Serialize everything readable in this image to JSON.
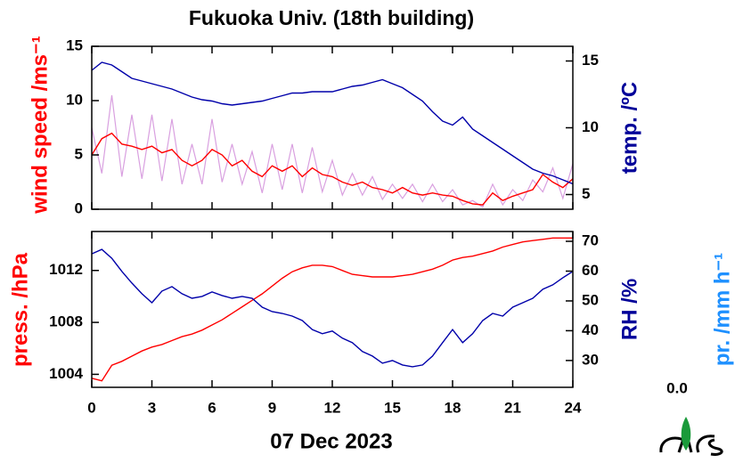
{
  "chart_data": [
    {
      "type": "line",
      "title": "Fukuoka Univ. (18th building)",
      "ylabel": "wind speed /ms⁻¹",
      "ylabel_color": "#ff0000",
      "y2label": "temp. /ºC",
      "y2label_color": "#000099",
      "xlim": [
        0,
        24
      ],
      "xticks": [
        0,
        3,
        6,
        9,
        12,
        15,
        18,
        21,
        24
      ],
      "ylim": [
        0,
        15
      ],
      "yticks": [
        0,
        5,
        10,
        15
      ],
      "y2lim": [
        3.9,
        16.1
      ],
      "y2ticks": [
        5,
        10,
        15
      ],
      "x": [
        0,
        0.5,
        1,
        1.5,
        2,
        2.5,
        3,
        3.5,
        4,
        4.5,
        5,
        5.5,
        6,
        6.5,
        7,
        7.5,
        8,
        8.5,
        9,
        9.5,
        10,
        10.5,
        11,
        11.5,
        12,
        12.5,
        13,
        13.5,
        14,
        14.5,
        15,
        15.5,
        16,
        16.5,
        17,
        17.5,
        18,
        18.5,
        19,
        19.5,
        20,
        20.5,
        21,
        21.5,
        22,
        22.5,
        23,
        23.5,
        24
      ],
      "series": [
        {
          "color": "#d9a0e0",
          "axis": "y",
          "values": [
            7.5,
            3.3,
            10.5,
            3,
            8.7,
            2.8,
            8.7,
            2.6,
            8.3,
            2.3,
            6,
            2.3,
            8.3,
            2.5,
            6,
            2.3,
            5.3,
            1.5,
            6,
            1.8,
            6,
            1.5,
            5.7,
            1.6,
            4.5,
            1.3,
            3.3,
            1.3,
            3,
            0.9,
            2.3,
            1,
            2.3,
            0.7,
            2.3,
            0.7,
            1.8,
            0.4,
            0.8,
            0.2,
            2.3,
            0.4,
            1.8,
            0.8,
            2.7,
            1.6,
            3.8,
            1,
            4.2
          ]
        },
        {
          "color": "#ff0000",
          "axis": "y",
          "values": [
            5,
            6.5,
            7,
            6,
            5.8,
            5.5,
            5.8,
            5.2,
            5.5,
            4.5,
            4,
            4.5,
            5.5,
            5,
            4,
            4.5,
            3.5,
            3,
            4,
            3.5,
            4,
            3,
            3.8,
            3.2,
            3,
            2.5,
            2.2,
            2.5,
            2,
            1.8,
            1.5,
            2,
            1.5,
            1.3,
            1.5,
            1.3,
            1.2,
            0.8,
            0.5,
            0.4,
            1.5,
            0.8,
            1.2,
            1.5,
            1.8,
            3.2,
            2.5,
            2,
            2.8
          ]
        },
        {
          "color": "#0000aa",
          "axis": "y2",
          "values": [
            14.3,
            14.9,
            14.7,
            14.2,
            13.7,
            13.5,
            13.3,
            13.1,
            12.9,
            12.6,
            12.3,
            12.1,
            12.0,
            11.8,
            11.7,
            11.8,
            11.9,
            12.0,
            12.2,
            12.4,
            12.6,
            12.6,
            12.7,
            12.7,
            12.7,
            12.9,
            13.1,
            13.2,
            13.4,
            13.6,
            13.3,
            13.0,
            12.5,
            12.0,
            11.2,
            10.5,
            10.2,
            10.8,
            9.9,
            9.4,
            8.9,
            8.4,
            7.9,
            7.4,
            6.9,
            6.6,
            6.4,
            6.1,
            5.8
          ]
        }
      ]
    },
    {
      "type": "line",
      "xlabel": "07 Dec 2023",
      "ylabel": "press. /hPa",
      "ylabel_color": "#ff0000",
      "y2label": "RH /%",
      "y2label_color": "#000099",
      "y3label": "pr. /mm h⁻¹",
      "y3label_color": "#1e90ff",
      "y3ticks": [
        {
          "value": 0,
          "label": "0.0"
        }
      ],
      "xlim": [
        0,
        24
      ],
      "xticks": [
        0,
        3,
        6,
        9,
        12,
        15,
        18,
        21,
        24
      ],
      "ylim": [
        1003.0,
        1015.0
      ],
      "yticks": [
        1004,
        1008,
        1012
      ],
      "y2lim": [
        21,
        73.3
      ],
      "y2ticks": [
        30,
        40,
        50,
        60,
        70
      ],
      "x": [
        0,
        0.5,
        1,
        1.5,
        2,
        2.5,
        3,
        3.5,
        4,
        4.5,
        5,
        5.5,
        6,
        6.5,
        7,
        7.5,
        8,
        8.5,
        9,
        9.5,
        10,
        10.5,
        11,
        11.5,
        12,
        12.5,
        13,
        13.5,
        14,
        14.5,
        15,
        15.5,
        16,
        16.5,
        17,
        17.5,
        18,
        18.5,
        19,
        19.5,
        20,
        20.5,
        21,
        21.5,
        22,
        22.5,
        23,
        23.5,
        24
      ],
      "series": [
        {
          "color": "#ff0000",
          "axis": "y",
          "values": [
            1003.7,
            1003.5,
            1004.7,
            1005.0,
            1005.4,
            1005.8,
            1006.1,
            1006.3,
            1006.6,
            1006.9,
            1007.1,
            1007.4,
            1007.8,
            1008.2,
            1008.7,
            1009.2,
            1009.7,
            1010.2,
            1010.8,
            1011.4,
            1011.9,
            1012.2,
            1012.4,
            1012.4,
            1012.3,
            1012.0,
            1011.7,
            1011.6,
            1011.5,
            1011.5,
            1011.5,
            1011.6,
            1011.7,
            1011.9,
            1012.1,
            1012.4,
            1012.8,
            1013.0,
            1013.1,
            1013.3,
            1013.5,
            1013.8,
            1014.0,
            1014.2,
            1014.3,
            1014.4,
            1014.5,
            1014.5,
            1014.5
          ]
        },
        {
          "color": "#0000aa",
          "axis": "y2",
          "values": [
            65.8,
            67.3,
            64.3,
            59.9,
            56,
            52.4,
            49.4,
            53.3,
            54.8,
            52.4,
            50.9,
            51.5,
            53,
            51.8,
            50.9,
            51.5,
            50.9,
            47.9,
            46.4,
            45.8,
            44.9,
            43.4,
            40.4,
            39,
            39.9,
            37.5,
            36,
            33,
            31.5,
            29.1,
            30,
            28.5,
            27.9,
            28.5,
            31.5,
            36,
            40.4,
            36,
            39,
            43.4,
            45.8,
            44.9,
            47.9,
            49.4,
            50.9,
            53.9,
            55.4,
            57.8,
            59.9
          ]
        }
      ]
    }
  ]
}
